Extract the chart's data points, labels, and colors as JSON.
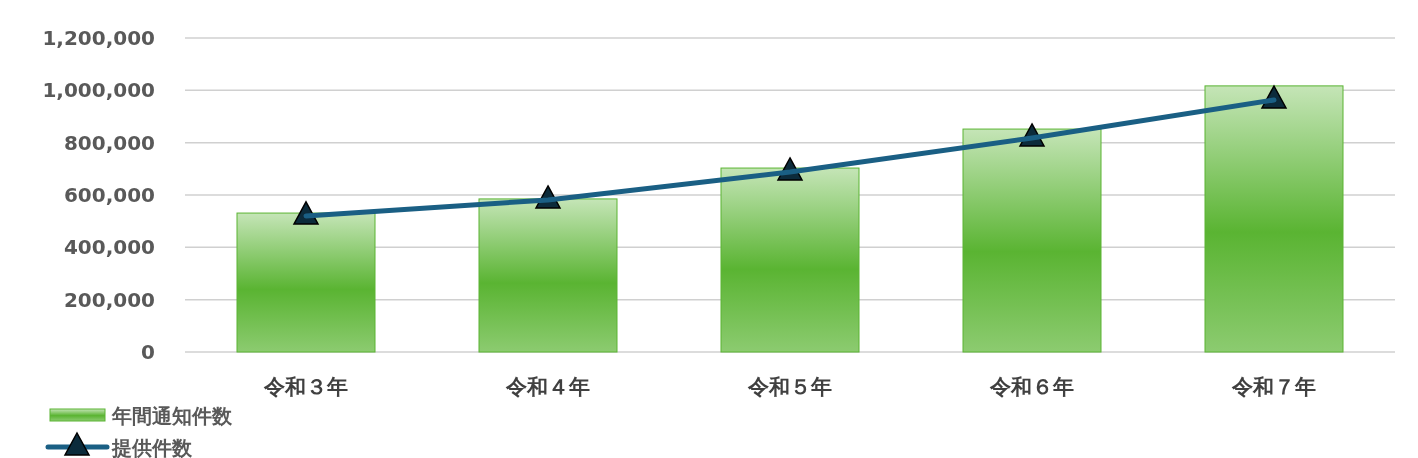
{
  "chart_data": {
    "type": "bar",
    "categories": [
      "令和３年",
      "令和４年",
      "令和５年",
      "令和６年",
      "令和７年"
    ],
    "series": [
      {
        "name": "年間通知件数",
        "color": "#5ab432",
        "values": [
          531000,
          585000,
          703000,
          852000,
          1017000
        ]
      },
      {
        "name": "提供件数",
        "type": "line",
        "color": "#1a5f84",
        "marker": "triangle",
        "values": [
          520000,
          581000,
          688000,
          818000,
          963000
        ]
      }
    ],
    "ylim": [
      0,
      1200000
    ],
    "yticks": [
      {
        "value": 0,
        "label": "0"
      },
      {
        "value": 200000,
        "label": "200,000"
      },
      {
        "value": 400000,
        "label": "400,000"
      },
      {
        "value": 600000,
        "label": "600,000"
      },
      {
        "value": 800000,
        "label": "800,000"
      },
      {
        "value": 1000000,
        "label": "1,000,000"
      },
      {
        "value": 1200000,
        "label": "1,200,000"
      }
    ],
    "grid": "y",
    "legend": "bottom left"
  }
}
